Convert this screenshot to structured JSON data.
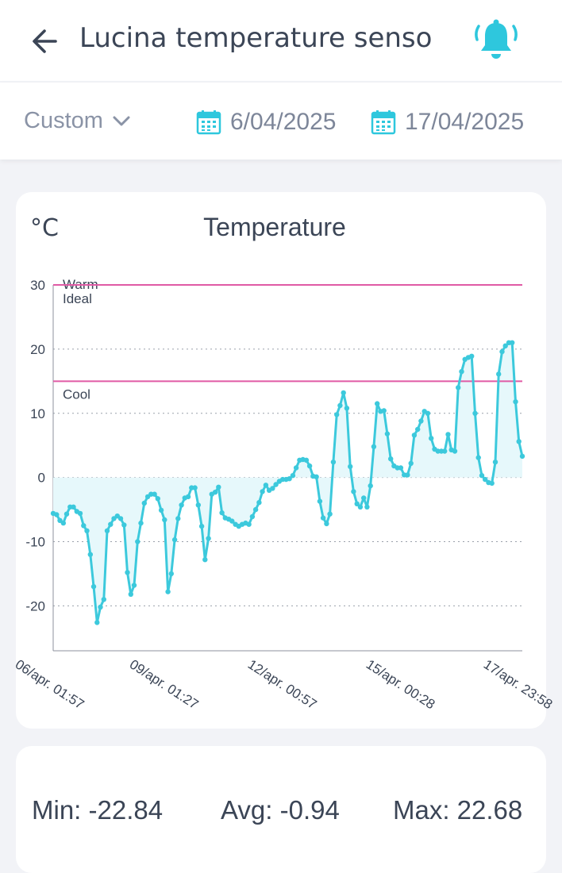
{
  "header": {
    "title": "Lucina temperature senso",
    "back_icon": "arrow-left-icon",
    "alarm_icon": "bell-ringing-icon",
    "accent_color": "#2ec7dd"
  },
  "filters": {
    "range_label": "Custom",
    "start_date": "6/04/2025",
    "end_date": "17/04/2025",
    "calendar_icon": "calendar-icon"
  },
  "chart_data": {
    "type": "area",
    "title": "Temperature",
    "unit": "°C",
    "ylim": [
      -27,
      30
    ],
    "yticks": [
      "30",
      "20",
      "10",
      "0",
      "-10",
      "-20"
    ],
    "ytick_values": [
      30,
      20,
      10,
      0,
      -10,
      -20
    ],
    "xticks": [
      "06/apr. 01:57",
      "09/apr. 01:27",
      "12/apr. 00:57",
      "15/apr. 00:28",
      "17/apr. 23:58"
    ],
    "grid": true,
    "line_color": "#3cc9dc",
    "fill_color": "#e6f8fb",
    "thresholds": [
      {
        "label": "Warm",
        "value": 30,
        "color": "#e05aa5"
      },
      {
        "label": "Ideal",
        "value": 30,
        "color": "#e05aa5"
      },
      {
        "label": "Cool",
        "value": 15,
        "color": "#e05aa5"
      }
    ],
    "series": [
      {
        "values": [
          -5.6,
          -5.8,
          -6.7,
          -7.1,
          -5.7,
          -4.6,
          -4.6,
          -5.3,
          -5.6,
          -7.5,
          -8.3,
          -12,
          -17,
          -22.6,
          -20.2,
          -19,
          -8.3,
          -7.3,
          -6.4,
          -6,
          -6.4,
          -7.4,
          -14.8,
          -18.2,
          -16.8,
          -10,
          -7.1,
          -4,
          -3,
          -2.6,
          -2.6,
          -3.3,
          -5.1,
          -6.6,
          -17.8,
          -15,
          -9.7,
          -6.4,
          -4.3,
          -3.2,
          -3,
          -1.6,
          -1.6,
          -4.3,
          -7.6,
          -12.8,
          -9.5,
          -2.6,
          -2.3,
          -1.5,
          -5.5,
          -6.3,
          -6.5,
          -6.8,
          -7.3,
          -7.6,
          -7.3,
          -7.1,
          -7.3,
          -6.1,
          -5,
          -3.9,
          -2.2,
          -1.2,
          -2,
          -1.7,
          -1.1,
          -0.6,
          -0.3,
          -0.3,
          -0.2,
          0.3,
          1.5,
          2.7,
          2.8,
          2.7,
          1.8,
          0.2,
          0.1,
          -3.7,
          -6.3,
          -7.2,
          -5.7,
          2.4,
          9.8,
          11.2,
          13.2,
          10.8,
          1.7,
          -2.2,
          -4.1,
          -4.6,
          -3.2,
          -4.6,
          -1.3,
          4.8,
          11.5,
          10.3,
          10.4,
          6.8,
          2.9,
          1.8,
          1.5,
          1.5,
          0.4,
          0.4,
          2.2,
          6.6,
          7.5,
          8.8,
          10.3,
          10,
          6.1,
          4.4,
          4.1,
          4.1,
          4.1,
          6.7,
          4.3,
          4.1,
          14,
          16.5,
          18.4,
          18.7,
          18.9,
          10,
          3.1,
          0.3,
          -0.3,
          -0.8,
          -0.9,
          2.4,
          16.1,
          19.6,
          20.5,
          21,
          21,
          11.8,
          5.6,
          3.3
        ]
      }
    ]
  },
  "stats": {
    "min_label": "Min: -22.84",
    "avg_label": "Avg: -0.94",
    "max_label": "Max: 22.68"
  }
}
